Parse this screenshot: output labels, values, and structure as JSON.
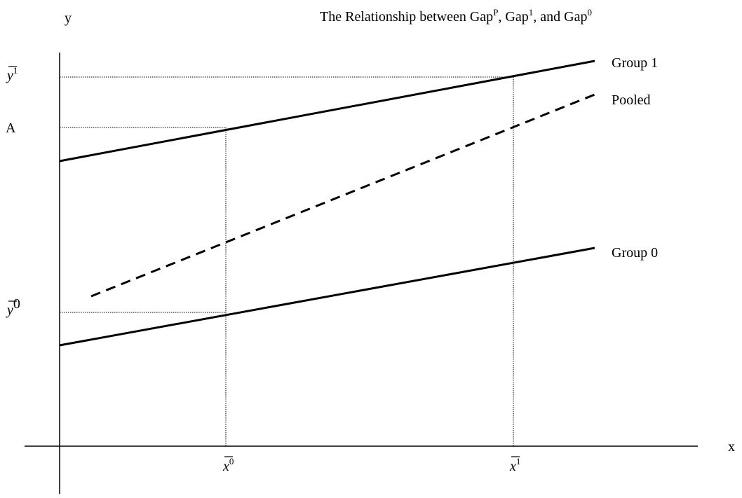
{
  "title": {
    "parts": [
      "The Relationship between Gap",
      "P",
      ", Gap",
      "1",
      ", and Gap",
      "0"
    ]
  },
  "axes": {
    "y_label": "y",
    "x_label": "x"
  },
  "y_labels": [
    {
      "base": "y",
      "sup": "1"
    },
    {
      "text": "A"
    },
    {
      "base": "y",
      "sup": "0"
    }
  ],
  "x_labels": [
    {
      "base": "x",
      "sup": "0"
    },
    {
      "base": "x",
      "sup": "1"
    }
  ],
  "lines": [
    {
      "label": "Group 1"
    },
    {
      "label": "Pooled"
    },
    {
      "label": "Group 0"
    }
  ]
}
